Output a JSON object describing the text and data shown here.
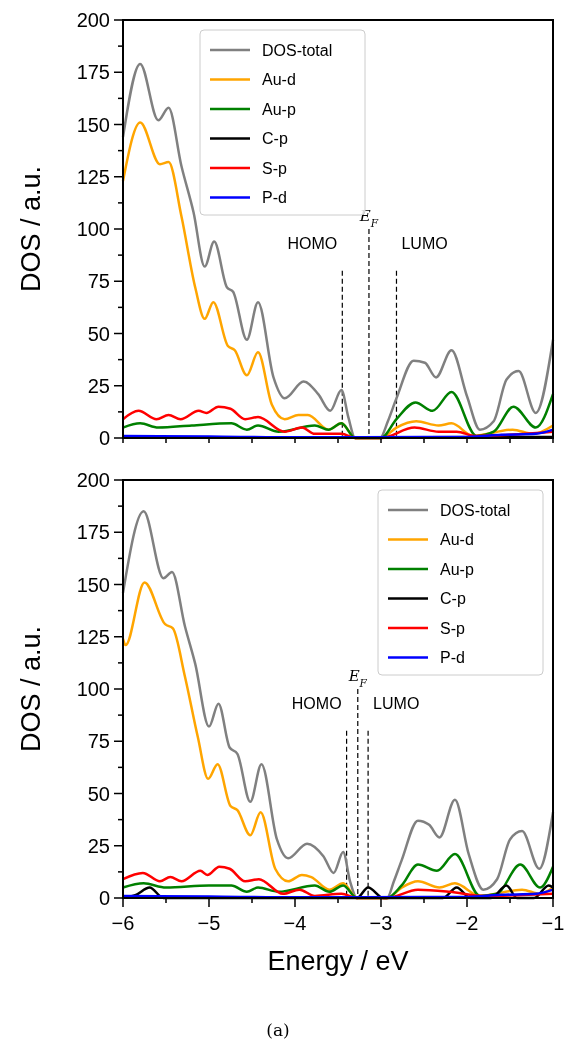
{
  "chart_data": [
    {
      "type": "line",
      "ylabel": "DOS / a.u.",
      "xlim": [
        -6,
        -1
      ],
      "ylim": [
        0,
        200
      ],
      "xticks": [
        {
          "value": -6,
          "label": null
        },
        {
          "value": -5.5,
          "label": null
        },
        {
          "value": -5,
          "label": null
        },
        {
          "value": -4.5,
          "label": null
        },
        {
          "value": -4,
          "label": null
        },
        {
          "value": -3.5,
          "label": null
        },
        {
          "value": -3,
          "label": null
        },
        {
          "value": -2.5,
          "label": null
        },
        {
          "value": -2,
          "label": null
        },
        {
          "value": -1.5,
          "label": null
        },
        {
          "value": -1,
          "label": null
        }
      ],
      "yticks": [
        0,
        {
          "value": 12.5,
          "label": null
        },
        25,
        {
          "value": 37.5,
          "label": null
        },
        50,
        {
          "value": 62.5,
          "label": null
        },
        75,
        {
          "value": 87.5,
          "label": null
        },
        100,
        {
          "value": 112.5,
          "label": null
        },
        125,
        {
          "value": 137.5,
          "label": null
        },
        150,
        {
          "value": 162.5,
          "label": null
        },
        175,
        {
          "value": 187.5,
          "label": null
        },
        200
      ],
      "tick_labels": "y",
      "legend": "top",
      "grid": false,
      "ref_lines": [
        {
          "axis": "x",
          "value": -3.45,
          "label": "HOMO",
          "color": "#000000",
          "line_style": "dashed"
        },
        {
          "axis": "x",
          "value": -3.14,
          "label": "E$_{F}$",
          "color": "#000000",
          "line_style": "dashed"
        },
        {
          "axis": "x",
          "value": -2.82,
          "label": "LUMO",
          "color": "#000000",
          "line_style": "dashed"
        }
      ],
      "series": [
        {
          "name": "DOS-total",
          "color": "#808080",
          "x": [
            -6,
            -5.8,
            -5.59,
            -5.47,
            -5.32,
            -5.18,
            -5.05,
            -4.94,
            -4.79,
            -4.72,
            -4.56,
            -4.43,
            -4.25,
            -4.12,
            -3.9,
            -3.73,
            -3.59,
            -3.46,
            -3.38,
            -3.3,
            -3.01,
            -2.92,
            -2.82,
            -2.62,
            -2.49,
            -2.36,
            -2.18,
            -2.0,
            -1.85,
            -1.69,
            -1.54,
            -1.4,
            -1.2,
            -1.0
          ],
          "values": [
            144,
            179,
            152,
            158,
            130,
            108,
            82,
            94,
            72,
            70,
            47,
            65,
            29,
            19,
            27,
            21,
            13,
            23,
            10,
            0,
            0,
            8,
            19,
            37,
            36,
            29,
            42,
            20,
            4,
            8,
            28,
            32,
            12,
            47
          ]
        },
        {
          "name": "Au-d",
          "color": "#ffa500",
          "x": [
            -6,
            -5.8,
            -5.57,
            -5.47,
            -5.32,
            -5.16,
            -5.05,
            -4.95,
            -4.78,
            -4.7,
            -4.56,
            -4.43,
            -4.27,
            -4.12,
            -3.96,
            -3.85,
            -3.61,
            -3.46,
            -3.3,
            -3.0,
            -2.82,
            -2.59,
            -2.33,
            -2.18,
            -1.93,
            -1.47,
            -1.23,
            -1.0
          ],
          "values": [
            123,
            151,
            131,
            132,
            106,
            72,
            57,
            65,
            44,
            42,
            30,
            41,
            16,
            9,
            11,
            11,
            4,
            7,
            0,
            0,
            5,
            8,
            6,
            7,
            1,
            4,
            2,
            6
          ]
        },
        {
          "name": "Au-p",
          "color": "#008000",
          "x": [
            -6,
            -5.8,
            -5.59,
            -5.2,
            -4.74,
            -4.56,
            -4.43,
            -4.19,
            -3.77,
            -3.61,
            -3.46,
            -3.3,
            -3.0,
            -2.82,
            -2.6,
            -2.4,
            -2.18,
            -1.89,
            -1.69,
            -1.46,
            -1.2,
            -1.0
          ],
          "values": [
            5,
            7,
            5,
            6,
            7,
            4,
            6,
            3,
            6,
            4,
            7,
            0,
            0,
            9,
            17,
            13,
            22,
            1,
            3,
            15,
            5,
            21
          ]
        },
        {
          "name": "C-p",
          "color": "#000000",
          "x": [
            -6,
            -3.5,
            -2.5,
            -1.0
          ],
          "values": [
            0.3,
            0.3,
            0.3,
            0.5
          ]
        },
        {
          "name": "S-p",
          "color": "#ff0000",
          "x": [
            -6,
            -5.82,
            -5.61,
            -5.47,
            -5.33,
            -5.12,
            -5.03,
            -4.89,
            -4.75,
            -4.58,
            -4.43,
            -4.12,
            -3.92,
            -3.77,
            -3.46,
            -3.3,
            -3.0,
            -2.61,
            -2.33,
            -2.12,
            -1.9,
            -1.0
          ],
          "values": [
            9,
            13,
            9,
            11,
            9,
            13,
            12,
            15,
            14,
            9,
            10,
            3,
            5,
            2,
            2,
            0,
            0,
            5,
            3,
            3,
            1,
            3
          ]
        },
        {
          "name": "P-d",
          "color": "#0000ff",
          "x": [
            -6,
            -5,
            -4,
            -2.5,
            -2,
            -1.6,
            -1.2,
            -1.0
          ],
          "values": [
            1,
            0.7,
            0.3,
            0.5,
            0.5,
            1.5,
            2,
            4
          ]
        }
      ]
    },
    {
      "type": "line",
      "ylabel": "DOS / a.u.",
      "xlabel": "Energy / eV",
      "xlim": [
        -6,
        -1
      ],
      "ylim": [
        0,
        200
      ],
      "xticks": [
        {
          "value": -6,
          "label": "−6"
        },
        {
          "value": -5.5,
          "label": null
        },
        {
          "value": -5,
          "label": "−5"
        },
        {
          "value": -4.5,
          "label": null
        },
        {
          "value": -4,
          "label": "−4"
        },
        {
          "value": -3.5,
          "label": null
        },
        {
          "value": -3,
          "label": "−3"
        },
        {
          "value": -2.5,
          "label": null
        },
        {
          "value": -2,
          "label": "−2"
        },
        {
          "value": -1.5,
          "label": null
        },
        {
          "value": -1,
          "label": "−1"
        }
      ],
      "yticks": [
        0,
        {
          "value": 12.5,
          "label": null
        },
        25,
        {
          "value": 37.5,
          "label": null
        },
        50,
        {
          "value": 62.5,
          "label": null
        },
        75,
        {
          "value": 87.5,
          "label": null
        },
        100,
        {
          "value": 112.5,
          "label": null
        },
        125,
        {
          "value": 137.5,
          "label": null
        },
        150,
        {
          "value": 162.5,
          "label": null
        },
        175,
        {
          "value": 187.5,
          "label": null
        },
        200
      ],
      "legend": "top right",
      "grid": false,
      "annotations": [
        "(a)"
      ],
      "ref_lines": [
        {
          "axis": "x",
          "value": -3.4,
          "label": "HOMO",
          "color": "#000000",
          "line_style": "dashed"
        },
        {
          "axis": "x",
          "value": -3.27,
          "label": "E$_{F}$",
          "color": "#000000",
          "line_style": "dashed"
        },
        {
          "axis": "x",
          "value": -3.15,
          "label": "LUMO",
          "color": "#000000",
          "line_style": "dashed"
        }
      ],
      "series": [
        {
          "name": "DOS-total",
          "color": "#808080",
          "x": [
            -6,
            -5.76,
            -5.53,
            -5.43,
            -5.28,
            -5.16,
            -5.0,
            -4.89,
            -4.76,
            -4.67,
            -4.52,
            -4.39,
            -4.21,
            -4.08,
            -3.86,
            -3.67,
            -3.55,
            -3.44,
            -3.36,
            -3.28,
            -2.93,
            -2.85,
            -2.76,
            -2.57,
            -2.44,
            -2.32,
            -2.14,
            -1.98,
            -1.81,
            -1.65,
            -1.5,
            -1.36,
            -1.16,
            -1.0
          ],
          "values": [
            146,
            185,
            153,
            156,
            130,
            112,
            82,
            93,
            72,
            69,
            46,
            64,
            28,
            19,
            26,
            20,
            12,
            22,
            8,
            0,
            0,
            8,
            18,
            37,
            35,
            29,
            47,
            21,
            4,
            9,
            28,
            32,
            14,
            41
          ]
        },
        {
          "name": "Au-d",
          "color": "#ffa500",
          "x": [
            -6,
            -5.97,
            -5.75,
            -5.51,
            -5.42,
            -5.28,
            -5.13,
            -5.01,
            -4.9,
            -4.75,
            -4.67,
            -4.52,
            -4.4,
            -4.23,
            -4.08,
            -3.92,
            -3.81,
            -3.6,
            -3.44,
            -3.28,
            -2.93,
            -2.76,
            -2.57,
            -2.32,
            -2.14,
            -1.85,
            -1.36,
            -1.15,
            -1.0
          ],
          "values": [
            124,
            121,
            151,
            131,
            129,
            106,
            77,
            57,
            64,
            44,
            42,
            30,
            41,
            14,
            8,
            11,
            10,
            4,
            7,
            0,
            0,
            5,
            8,
            5,
            7,
            1,
            4,
            2,
            5
          ]
        },
        {
          "name": "Au-p",
          "color": "#008000",
          "x": [
            -6,
            -5.76,
            -5.5,
            -5.0,
            -4.74,
            -4.56,
            -4.43,
            -4.19,
            -3.77,
            -3.6,
            -3.44,
            -3.28,
            -2.93,
            -2.76,
            -2.57,
            -2.35,
            -2.14,
            -1.85,
            -1.65,
            -1.38,
            -1.15,
            -1.0
          ],
          "values": [
            5,
            7,
            5,
            6,
            6,
            3,
            5,
            3,
            6,
            3,
            6,
            0,
            0,
            6,
            16,
            13,
            21,
            1,
            2,
            16,
            5,
            15
          ]
        },
        {
          "name": "C-p",
          "color": "#000000",
          "x": [
            -6,
            -5.85,
            -5.69,
            -5.53,
            -3.28,
            -3.15,
            -2.97,
            -2.28,
            -2.12,
            -1.96,
            -1.72,
            -1.54,
            -1.42,
            -1.22,
            -1.05,
            -1.0
          ],
          "values": [
            0,
            1.5,
            5,
            0,
            0,
            5,
            0,
            0,
            5,
            0,
            0,
            6,
            0,
            0,
            6,
            5
          ]
        },
        {
          "name": "S-p",
          "color": "#ff0000",
          "x": [
            -6,
            -5.77,
            -5.57,
            -5.45,
            -5.32,
            -5.1,
            -5.02,
            -4.88,
            -4.76,
            -4.58,
            -4.42,
            -4.14,
            -3.95,
            -3.77,
            -3.46,
            -3.28,
            -2.93,
            -2.57,
            -2.2,
            -1.8,
            -1.0
          ],
          "values": [
            9,
            12,
            8,
            10,
            8,
            13,
            11,
            15,
            14,
            8,
            9,
            2,
            4,
            1,
            2,
            0,
            0,
            4,
            3,
            1,
            2
          ]
        },
        {
          "name": "P-d",
          "color": "#0000ff",
          "x": [
            -6,
            -5,
            -4,
            -2.5,
            -2,
            -1.6,
            -1.2,
            -1.0
          ],
          "values": [
            1,
            0.7,
            0.3,
            0.5,
            0.5,
            1.5,
            2,
            4
          ]
        }
      ]
    }
  ]
}
